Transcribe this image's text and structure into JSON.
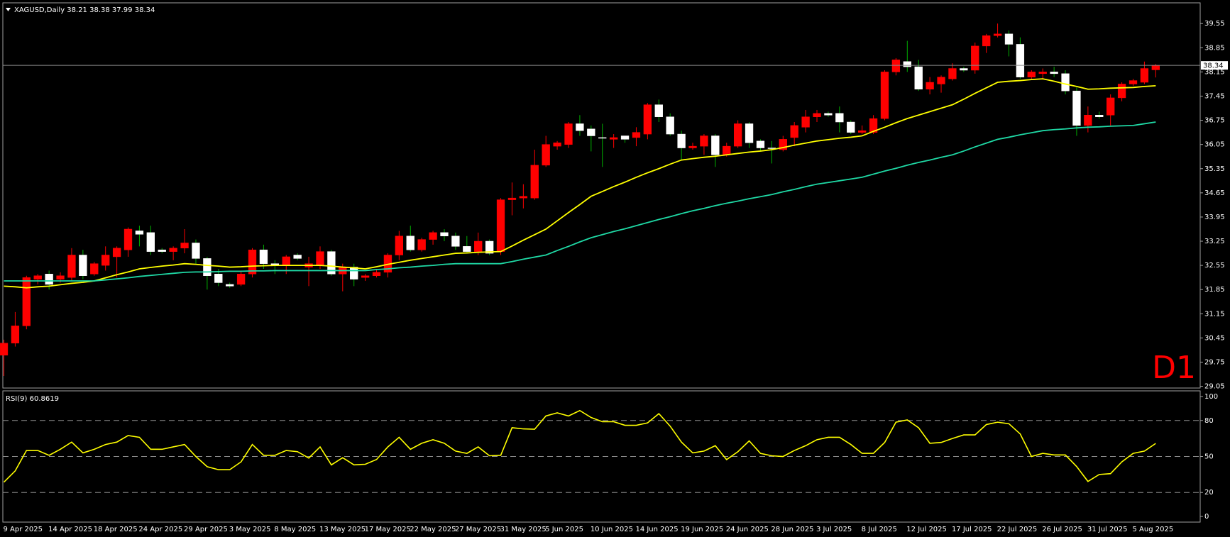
{
  "chart_data": [
    {
      "type": "candlestick",
      "title": "XAGUSD,Daily  38.21 38.38 37.99 38.34",
      "watermark": "D1",
      "last_price": 38.34,
      "ylim": [
        29.0,
        40.15
      ],
      "yticks": [
        39.55,
        38.85,
        38.15,
        37.45,
        36.75,
        36.05,
        35.35,
        34.65,
        33.95,
        33.25,
        32.55,
        31.85,
        31.15,
        30.45,
        29.75,
        29.05
      ],
      "up_color": "#ff0000",
      "down_color": "#ffffff",
      "down_wick_color": "#00b000",
      "watermark_color": "#ff0000",
      "categories": [
        "9 Apr 2025",
        null,
        null,
        null,
        "14 Apr 2025",
        null,
        null,
        null,
        "18 Apr 2025",
        null,
        null,
        null,
        "24 Apr 2025",
        null,
        null,
        null,
        "29 Apr 2025",
        null,
        null,
        null,
        "3 May 2025",
        null,
        null,
        null,
        "8 May 2025",
        null,
        null,
        null,
        "13 May 2025",
        null,
        null,
        null,
        "17 May 2025",
        null,
        null,
        null,
        "22 May 2025",
        null,
        null,
        null,
        "27 May 2025",
        null,
        null,
        null,
        "31 May 2025",
        null,
        null,
        null,
        "5 Jun 2025",
        null,
        null,
        null,
        "10 Jun 2025",
        null,
        null,
        null,
        "14 Jun 2025",
        null,
        null,
        null,
        "19 Jun 2025",
        null,
        null,
        null,
        "24 Jun 2025",
        null,
        null,
        null,
        "28 Jun 2025",
        null,
        null,
        null,
        "3 Jul 2025",
        null,
        null,
        null,
        "8 Jul 2025",
        null,
        null,
        null,
        "12 Jul 2025",
        null,
        null,
        null,
        "17 Jul 2025",
        null,
        null,
        null,
        "22 Jul 2025",
        null,
        null,
        null,
        "26 Jul 2025",
        null,
        null,
        null,
        "31 Jul 2025",
        null,
        null,
        null,
        "5 Aug 2025",
        null,
        null
      ],
      "open": [
        29.95,
        30.3,
        30.8,
        32.15,
        32.3,
        32.15,
        32.2,
        32.85,
        32.3,
        32.55,
        32.8,
        33.0,
        33.55,
        33.5,
        33.0,
        32.95,
        33.05,
        33.2,
        32.75,
        32.3,
        32.0,
        32.0,
        32.3,
        33.0,
        32.6,
        32.55,
        32.85,
        32.5,
        32.55,
        32.95,
        32.3,
        32.5,
        32.2,
        32.25,
        32.35,
        32.85,
        33.4,
        33.0,
        33.3,
        33.5,
        33.4,
        33.1,
        32.95,
        33.25,
        32.95,
        34.45,
        34.5,
        34.5,
        35.45,
        36.0,
        36.05,
        36.65,
        36.5,
        36.25,
        36.2,
        36.3,
        36.25,
        36.35,
        37.2,
        36.85,
        36.35,
        35.95,
        36.0,
        36.3,
        35.75,
        36.0,
        36.65,
        36.15,
        35.95,
        35.9,
        36.25,
        36.55,
        36.85,
        36.95,
        36.95,
        36.7,
        36.4,
        36.4,
        36.8,
        38.15,
        38.45,
        38.3,
        37.65,
        37.8,
        37.95,
        38.25,
        38.2,
        38.9,
        39.2,
        39.25,
        38.95,
        38.0,
        38.1,
        38.15,
        38.1,
        37.6,
        36.6,
        36.9,
        36.9,
        37.4,
        37.8,
        37.85,
        38.21
      ],
      "high": [
        30.4,
        31.2,
        32.25,
        32.3,
        32.4,
        32.35,
        33.05,
        33.0,
        32.65,
        33.1,
        33.1,
        33.65,
        33.7,
        33.7,
        33.05,
        33.1,
        33.6,
        33.3,
        32.8,
        32.45,
        32.05,
        32.4,
        33.05,
        33.15,
        32.7,
        32.85,
        32.9,
        32.8,
        33.1,
        33.0,
        32.6,
        32.6,
        32.3,
        32.45,
        32.9,
        33.55,
        33.7,
        33.35,
        33.55,
        33.6,
        33.5,
        33.4,
        33.5,
        33.3,
        34.5,
        34.95,
        34.9,
        35.9,
        36.3,
        36.15,
        36.7,
        36.9,
        36.6,
        36.65,
        36.35,
        36.3,
        36.55,
        37.25,
        37.35,
        36.95,
        36.45,
        36.1,
        36.35,
        36.35,
        36.1,
        36.75,
        36.7,
        36.2,
        36.15,
        36.3,
        36.7,
        37.05,
        37.05,
        37.0,
        37.15,
        36.75,
        36.6,
        36.9,
        38.2,
        38.55,
        39.05,
        38.5,
        38.0,
        38.05,
        38.4,
        38.3,
        39.0,
        39.25,
        39.55,
        39.35,
        39.15,
        38.2,
        38.25,
        38.3,
        38.2,
        37.7,
        37.15,
        37.0,
        37.5,
        37.85,
        37.95,
        38.45,
        38.38
      ],
      "low": [
        29.35,
        30.2,
        30.7,
        32.0,
        31.85,
        32.05,
        32.1,
        32.15,
        32.25,
        32.4,
        32.2,
        32.8,
        33.1,
        32.85,
        32.9,
        32.7,
        32.9,
        32.6,
        31.85,
        31.95,
        31.9,
        31.95,
        32.2,
        32.45,
        32.3,
        32.3,
        32.7,
        31.95,
        32.45,
        32.25,
        31.8,
        31.95,
        32.1,
        32.2,
        32.2,
        32.7,
        32.95,
        32.95,
        33.15,
        33.25,
        33.0,
        32.9,
        32.85,
        32.85,
        32.85,
        34.0,
        34.2,
        34.45,
        35.4,
        35.9,
        35.95,
        36.3,
        35.85,
        35.4,
        35.95,
        36.1,
        36.0,
        36.2,
        36.7,
        36.3,
        35.6,
        35.9,
        35.75,
        35.4,
        35.7,
        35.95,
        35.95,
        35.85,
        35.5,
        35.85,
        36.0,
        36.4,
        36.7,
        36.85,
        36.4,
        36.35,
        36.35,
        36.35,
        36.75,
        38.05,
        38.15,
        37.6,
        37.5,
        37.55,
        37.9,
        38.15,
        38.1,
        38.7,
        39.15,
        38.6,
        37.95,
        37.95,
        37.95,
        38.0,
        37.5,
        36.3,
        36.4,
        36.8,
        36.6,
        37.3,
        37.75,
        37.8,
        37.99
      ],
      "close": [
        30.3,
        30.8,
        32.2,
        32.25,
        32.0,
        32.25,
        32.85,
        32.25,
        32.6,
        32.85,
        33.05,
        33.6,
        33.45,
        32.95,
        32.95,
        33.05,
        33.2,
        32.75,
        32.25,
        32.05,
        31.95,
        32.3,
        33.0,
        32.6,
        32.55,
        32.8,
        32.75,
        32.6,
        32.95,
        32.3,
        32.5,
        32.15,
        32.25,
        32.35,
        32.85,
        33.4,
        33.0,
        33.3,
        33.5,
        33.4,
        33.1,
        32.95,
        33.25,
        32.9,
        34.45,
        34.5,
        34.55,
        35.45,
        36.05,
        36.1,
        36.65,
        36.45,
        36.3,
        36.25,
        36.25,
        36.2,
        36.4,
        37.2,
        36.85,
        36.35,
        35.95,
        36.0,
        36.3,
        35.75,
        36.0,
        36.65,
        36.1,
        35.95,
        35.95,
        36.2,
        36.6,
        36.85,
        36.95,
        36.9,
        36.7,
        36.4,
        36.45,
        36.8,
        38.15,
        38.5,
        38.3,
        37.65,
        37.85,
        38.0,
        38.25,
        38.2,
        38.9,
        39.2,
        39.25,
        38.95,
        38.0,
        38.15,
        38.15,
        38.1,
        37.6,
        36.6,
        36.9,
        36.85,
        37.4,
        37.8,
        37.9,
        38.25,
        38.34
      ],
      "series": [
        {
          "color": "#ffff00",
          "values": [
            31.95,
            31.93,
            31.9,
            31.93,
            31.95,
            31.99,
            32.03,
            32.06,
            32.1,
            32.19,
            32.28,
            32.36,
            32.45,
            32.49,
            32.53,
            32.56,
            32.6,
            32.58,
            32.55,
            32.53,
            32.5,
            32.51,
            32.53,
            32.54,
            32.55,
            32.55,
            32.55,
            32.55,
            32.55,
            32.53,
            32.5,
            32.48,
            32.45,
            32.51,
            32.58,
            32.64,
            32.7,
            32.75,
            32.8,
            32.85,
            32.9,
            32.91,
            32.93,
            32.94,
            32.95,
            33.11,
            33.28,
            33.44,
            33.6,
            33.84,
            34.08,
            34.31,
            34.55,
            34.69,
            34.83,
            34.96,
            35.1,
            35.23,
            35.35,
            35.48,
            35.6,
            35.64,
            35.68,
            35.71,
            35.75,
            35.79,
            35.83,
            35.86,
            35.9,
            35.96,
            36.03,
            36.09,
            36.15,
            36.19,
            36.23,
            36.26,
            36.3,
            36.43,
            36.55,
            36.68,
            36.8,
            36.9,
            37.0,
            37.1,
            37.2,
            37.36,
            37.53,
            37.69,
            37.85,
            37.88,
            37.9,
            37.93,
            37.95,
            37.88,
            37.8,
            37.73,
            37.65,
            37.66,
            37.68,
            37.69,
            37.7,
            37.73,
            37.75
          ]
        },
        {
          "color": "#1fd9a5",
          "values": [
            32.1,
            32.1,
            32.1,
            32.1,
            32.1,
            32.1,
            32.1,
            32.1,
            32.1,
            32.13,
            32.16,
            32.19,
            32.23,
            32.26,
            32.29,
            32.32,
            32.35,
            32.36,
            32.36,
            32.37,
            32.38,
            32.38,
            32.39,
            32.39,
            32.4,
            32.4,
            32.4,
            32.4,
            32.4,
            32.4,
            32.4,
            32.4,
            32.4,
            32.43,
            32.45,
            32.48,
            32.5,
            32.53,
            32.55,
            32.58,
            32.6,
            32.6,
            32.6,
            32.6,
            32.6,
            32.66,
            32.73,
            32.79,
            32.85,
            32.98,
            33.1,
            33.23,
            33.35,
            33.44,
            33.53,
            33.61,
            33.7,
            33.79,
            33.88,
            33.96,
            34.05,
            34.13,
            34.2,
            34.28,
            34.35,
            34.41,
            34.48,
            34.54,
            34.6,
            34.68,
            34.75,
            34.83,
            34.9,
            34.95,
            35.0,
            35.05,
            35.1,
            35.19,
            35.28,
            35.36,
            35.45,
            35.53,
            35.6,
            35.68,
            35.75,
            35.86,
            35.98,
            36.09,
            36.2,
            36.26,
            36.33,
            36.39,
            36.45,
            36.48,
            36.5,
            36.53,
            36.55,
            36.56,
            36.58,
            36.59,
            36.6,
            36.65,
            36.7
          ]
        }
      ]
    },
    {
      "type": "line",
      "title": "RSI(9) 60.8619",
      "ylim": [
        -4.7,
        104.7
      ],
      "yticks": [
        100,
        80,
        50,
        20,
        0
      ],
      "levels": [
        80,
        50,
        20
      ],
      "color": "#ffff00",
      "values": [
        28.6,
        38,
        55,
        55,
        51,
        56,
        62,
        53,
        56,
        60,
        62,
        67.5,
        66,
        56,
        56,
        58,
        60,
        50,
        41.5,
        39,
        39,
        45.5,
        60,
        51,
        51,
        55,
        54,
        48.7,
        58,
        43,
        49,
        43,
        43.5,
        47.5,
        58,
        66,
        56,
        61,
        64,
        61,
        54.5,
        52.6,
        58,
        50.6,
        51,
        74,
        73,
        72.7,
        83.8,
        86.4,
        83.8,
        88.3,
        82.5,
        79,
        79,
        76,
        76,
        78,
        85.7,
        75.3,
        62,
        53,
        54.5,
        59,
        47.4,
        54,
        63,
        52.6,
        50.6,
        50,
        55,
        59,
        64,
        66,
        66,
        60,
        52.6,
        52.6,
        61.7,
        78.6,
        80.5,
        74,
        61,
        61.7,
        65,
        68,
        68,
        76.6,
        78.6,
        77.3,
        68.8,
        50,
        52.6,
        51.3,
        51.3,
        41.6,
        29.2,
        35,
        35.7,
        45.5,
        52.6,
        54.5,
        60.8619
      ]
    }
  ]
}
